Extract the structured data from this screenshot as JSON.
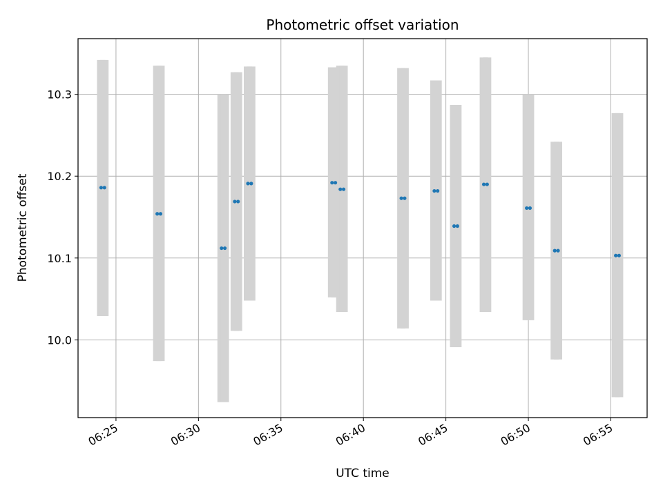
{
  "chart_data": {
    "type": "scatter",
    "title": "Photometric offset variation",
    "xlabel": "UTC time",
    "ylabel": "Photometric offset",
    "x_ticks": [
      "06:25",
      "06:30",
      "06:35",
      "06:40",
      "06:45",
      "06:50",
      "06:55"
    ],
    "y_ticks": [
      "10.0",
      "10.1",
      "10.2",
      "10.3"
    ],
    "xlim": [
      "06:22:42",
      "06:57:12"
    ],
    "ylim": [
      9.905,
      10.368
    ],
    "grid": true,
    "colors": {
      "point": "#1f77b4",
      "errorbar": "#d3d3d3",
      "grid": "#b0b0b0"
    },
    "series": [
      {
        "points": [
          {
            "time": "06:24:06",
            "value": 10.186,
            "low": 10.029,
            "high": 10.342
          },
          {
            "time": "06:24:18",
            "value": 10.186,
            "low": 10.029,
            "high": 10.342
          },
          {
            "time": "06:27:30",
            "value": 10.154,
            "low": 9.974,
            "high": 10.335
          },
          {
            "time": "06:27:42",
            "value": 10.154,
            "low": 9.974,
            "high": 10.335
          },
          {
            "time": "06:31:24",
            "value": 10.112,
            "low": 9.924,
            "high": 10.3
          },
          {
            "time": "06:31:36",
            "value": 10.112,
            "low": 9.924,
            "high": 10.3
          },
          {
            "time": "06:32:12",
            "value": 10.169,
            "low": 10.011,
            "high": 10.327
          },
          {
            "time": "06:32:24",
            "value": 10.169,
            "low": 10.011,
            "high": 10.327
          },
          {
            "time": "06:33:00",
            "value": 10.191,
            "low": 10.048,
            "high": 10.334
          },
          {
            "time": "06:33:12",
            "value": 10.191,
            "low": 10.048,
            "high": 10.334
          },
          {
            "time": "06:38:06",
            "value": 10.192,
            "low": 10.052,
            "high": 10.333
          },
          {
            "time": "06:38:18",
            "value": 10.192,
            "low": 10.052,
            "high": 10.333
          },
          {
            "time": "06:38:36",
            "value": 10.184,
            "low": 10.034,
            "high": 10.335
          },
          {
            "time": "06:38:48",
            "value": 10.184,
            "low": 10.034,
            "high": 10.335
          },
          {
            "time": "06:42:18",
            "value": 10.173,
            "low": 10.014,
            "high": 10.332
          },
          {
            "time": "06:42:30",
            "value": 10.173,
            "low": 10.014,
            "high": 10.332
          },
          {
            "time": "06:44:18",
            "value": 10.182,
            "low": 10.048,
            "high": 10.317
          },
          {
            "time": "06:44:30",
            "value": 10.182,
            "low": 10.048,
            "high": 10.317
          },
          {
            "time": "06:45:30",
            "value": 10.139,
            "low": 9.991,
            "high": 10.287
          },
          {
            "time": "06:45:42",
            "value": 10.139,
            "low": 9.991,
            "high": 10.287
          },
          {
            "time": "06:47:18",
            "value": 10.19,
            "low": 10.034,
            "high": 10.345
          },
          {
            "time": "06:47:30",
            "value": 10.19,
            "low": 10.034,
            "high": 10.345
          },
          {
            "time": "06:49:54",
            "value": 10.161,
            "low": 10.024,
            "high": 10.3
          },
          {
            "time": "06:50:06",
            "value": 10.161,
            "low": 10.024,
            "high": 10.3
          },
          {
            "time": "06:51:36",
            "value": 10.109,
            "low": 9.976,
            "high": 10.242
          },
          {
            "time": "06:51:48",
            "value": 10.109,
            "low": 9.976,
            "high": 10.242
          },
          {
            "time": "06:55:18",
            "value": 10.103,
            "low": 9.93,
            "high": 10.277
          },
          {
            "time": "06:55:30",
            "value": 10.103,
            "low": 9.93,
            "high": 10.277
          }
        ]
      }
    ]
  }
}
